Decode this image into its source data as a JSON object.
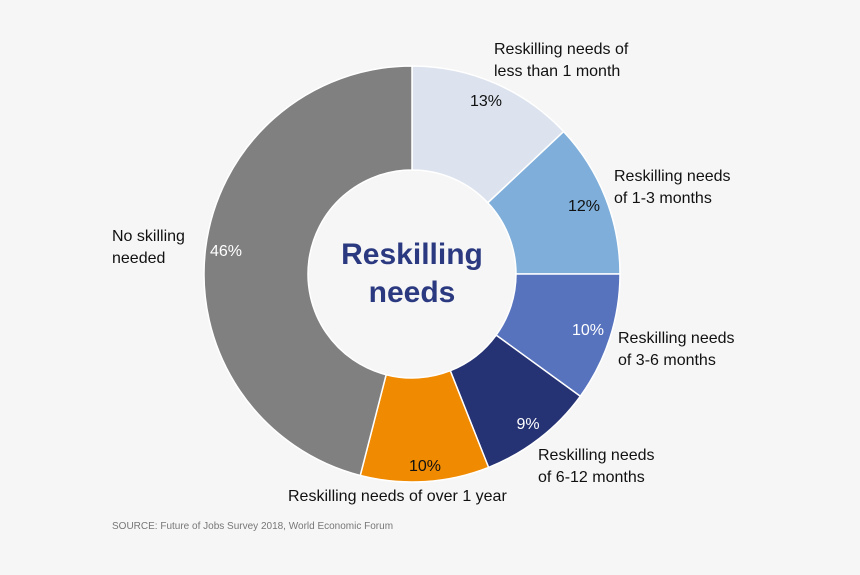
{
  "chart_data": {
    "type": "pie",
    "donut": true,
    "center_label": "Reskilling\nneeds",
    "categories": [
      "Reskilling needs of less than 1 month",
      "Reskilling needs of 1-3 months",
      "Reskilling needs of 3-6 months",
      "Reskilling needs of 6-12 months",
      "Reskilling needs of over 1 year",
      "No skilling needed"
    ],
    "display_labels": [
      "Reskilling needs of\nless than 1 month",
      "Reskilling needs\nof 1-3 months",
      "Reskilling needs\nof 3-6 months",
      "Reskilling needs\nof 6-12 months",
      "Reskilling needs of over 1 year",
      "No skilling\nneeded"
    ],
    "values": [
      13,
      12,
      10,
      9,
      10,
      46
    ],
    "data_labels": [
      "13%",
      "12%",
      "10%",
      "9%",
      "10%",
      "46%"
    ],
    "colors": [
      "#dce3ee",
      "#7eaed9",
      "#5873be",
      "#253273",
      "#f08a00",
      "#808080"
    ],
    "start": "12 o'clock, clockwise"
  },
  "source": "SOURCE: Future of Jobs Survey 2018, World Economic Forum"
}
